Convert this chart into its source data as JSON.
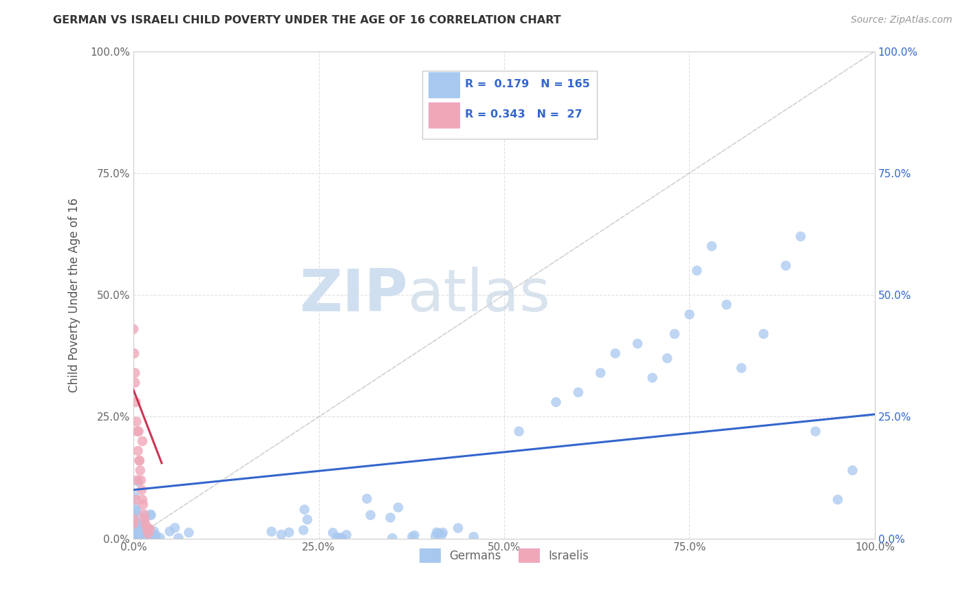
{
  "title": "GERMAN VS ISRAELI CHILD POVERTY UNDER THE AGE OF 16 CORRELATION CHART",
  "source": "Source: ZipAtlas.com",
  "ylabel": "Child Poverty Under the Age of 16",
  "watermark_zip": "ZIP",
  "watermark_atlas": "atlas",
  "xlim": [
    0.0,
    1.0
  ],
  "ylim": [
    0.0,
    1.0
  ],
  "xticks": [
    0.0,
    0.25,
    0.5,
    0.75,
    1.0
  ],
  "yticks": [
    0.0,
    0.25,
    0.5,
    0.75,
    1.0
  ],
  "xticklabels_bottom": [
    "0.0%",
    "25.0%",
    "50.0%",
    "75.0%",
    "100.0%"
  ],
  "yticklabels_left": [
    "0.0%",
    "25.0%",
    "50.0%",
    "75.0%",
    "100.0%"
  ],
  "yticklabels_right": [
    "0.0%",
    "25.0%",
    "50.0%",
    "75.0%",
    "100.0%"
  ],
  "german_color": "#a8c8f0",
  "israeli_color": "#f0a8b8",
  "trend_german_color": "#3366cc",
  "trend_israeli_color": "#cc3355",
  "diagonal_color": "#cccccc",
  "R_german": 0.179,
  "N_german": 165,
  "R_israeli": 0.343,
  "N_israeli": 27,
  "legend_labels": [
    "Germans",
    "Israelis"
  ],
  "background_color": "#ffffff",
  "grid_color": "#cccccc",
  "title_color": "#333333",
  "axis_label_color": "#555555",
  "tick_label_color": "#666666",
  "right_tick_color": "#3366cc",
  "legend_text_color": "#3366cc",
  "trend_german_start_x": 0.0,
  "trend_german_end_x": 1.0,
  "trend_german_start_y": 0.1,
  "trend_german_end_y": 0.255,
  "trend_israeli_start_x": 0.0,
  "trend_israeli_end_x": 0.038,
  "trend_israeli_start_y": 0.305,
  "trend_israeli_end_y": 0.155
}
